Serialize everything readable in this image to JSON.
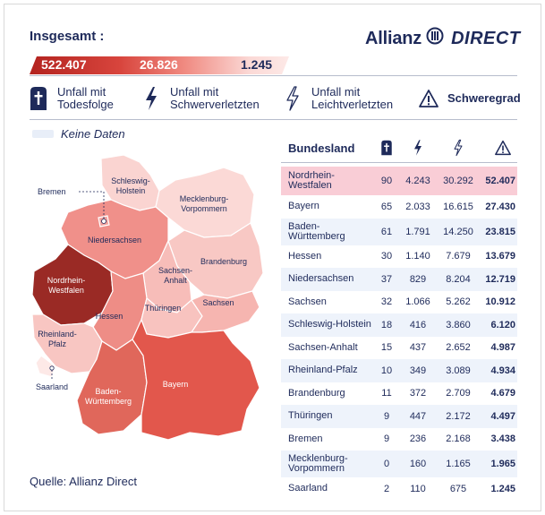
{
  "header": {
    "title": "Insgesamt :",
    "brand": "Allianz",
    "brand_suffix": "DIRECT"
  },
  "totals": {
    "fatal": "522.407",
    "severe": "26.826",
    "light": "1.245"
  },
  "legend": {
    "fatal_line1": "Unfall mit",
    "fatal_line2": "Todesfolge",
    "severe_line1": "Unfall mit",
    "severe_line2": "Schwerverletzten",
    "light_line1": "Unfall mit",
    "light_line2": "Leichtverletzten",
    "severity": "Schweregrad",
    "no_data": "Keine Daten"
  },
  "map": {
    "labels": {
      "bremen": "Bremen",
      "schleswig_holstein_1": "Schleswig-",
      "schleswig_holstein_2": "Holstein",
      "mecklenburg_1": "Mecklenburg-",
      "mecklenburg_2": "Vorpommern",
      "niedersachsen": "Niedersachsen",
      "brandenburg": "Brandenburg",
      "sachsen_anhalt_1": "Sachsen-",
      "sachsen_anhalt_2": "Anhalt",
      "nrw_1": "Nordrhein-",
      "nrw_2": "Westfalen",
      "sachsen": "Sachsen",
      "hessen": "Hessen",
      "thueringen": "Thüringen",
      "rlp_1": "Rheinland-",
      "rlp_2": "Pfalz",
      "saarland": "Saarland",
      "bw_1": "Baden-",
      "bw_2": "Württemberg",
      "bayern": "Bayern"
    },
    "colors": {
      "nrw": "#9a2a25",
      "bayern": "#e2574c",
      "bw": "#e0675b",
      "hessen": "#ee8d86",
      "niedersachsen": "#f0908a",
      "sachsen": "#f6b5b0",
      "schleswig_holstein": "#fad4d1",
      "sachsen_anhalt": "#f7bdb9",
      "rlp": "#f8c6c2",
      "brandenburg": "#f8c8c4",
      "thueringen": "#f8c3bf",
      "bremen": "#f3a49f",
      "mecklenburg": "#fbd9d6",
      "saarland": "#fde9e7"
    }
  },
  "table": {
    "header_name": "Bundesland",
    "rows": [
      {
        "name_1": "Nordrhein-",
        "name_2": "Westfalen",
        "fatal": "90",
        "severe": "4.243",
        "light": "30.292",
        "severity": "52.407"
      },
      {
        "name_1": "Bayern",
        "name_2": "",
        "fatal": "65",
        "severe": "2.033",
        "light": "16.615",
        "severity": "27.430"
      },
      {
        "name_1": "Baden-",
        "name_2": "Württemberg",
        "fatal": "61",
        "severe": "1.791",
        "light": "14.250",
        "severity": "23.815"
      },
      {
        "name_1": "Hessen",
        "name_2": "",
        "fatal": "30",
        "severe": "1.140",
        "light": "7.679",
        "severity": "13.679"
      },
      {
        "name_1": "Niedersachsen",
        "name_2": "",
        "fatal": "37",
        "severe": "829",
        "light": "8.204",
        "severity": "12.719"
      },
      {
        "name_1": "Sachsen",
        "name_2": "",
        "fatal": "32",
        "severe": "1.066",
        "light": "5.262",
        "severity": "10.912"
      },
      {
        "name_1": "Schleswig-Holstein",
        "name_2": "",
        "fatal": "18",
        "severe": "416",
        "light": "3.860",
        "severity": "6.120"
      },
      {
        "name_1": "Sachsen-Anhalt",
        "name_2": "",
        "fatal": "15",
        "severe": "437",
        "light": "2.652",
        "severity": "4.987"
      },
      {
        "name_1": "Rheinland-Pfalz",
        "name_2": "",
        "fatal": "10",
        "severe": "349",
        "light": "3.089",
        "severity": "4.934"
      },
      {
        "name_1": "Brandenburg",
        "name_2": "",
        "fatal": "11",
        "severe": "372",
        "light": "2.709",
        "severity": "4.679"
      },
      {
        "name_1": "Thüringen",
        "name_2": "",
        "fatal": "9",
        "severe": "447",
        "light": "2.172",
        "severity": "4.497"
      },
      {
        "name_1": "Bremen",
        "name_2": "",
        "fatal": "9",
        "severe": "236",
        "light": "2.168",
        "severity": "3.438"
      },
      {
        "name_1": "Mecklenburg-",
        "name_2": "Vorpommern",
        "fatal": "0",
        "severe": "160",
        "light": "1.165",
        "severity": "1.965"
      },
      {
        "name_1": "Saarland",
        "name_2": "",
        "fatal": "2",
        "severe": "110",
        "light": "675",
        "severity": "1.245"
      }
    ]
  },
  "source": "Quelle: Allianz Direct",
  "chart_data": {
    "type": "table",
    "columns": [
      "Bundesland",
      "Unfall mit Todesfolge",
      "Unfall mit Schwerverletzten",
      "Unfall mit Leichtverletzten",
      "Schweregrad"
    ],
    "categories": [
      "Nordrhein-Westfalen",
      "Bayern",
      "Baden-Württemberg",
      "Hessen",
      "Niedersachsen",
      "Sachsen",
      "Schleswig-Holstein",
      "Sachsen-Anhalt",
      "Rheinland-Pfalz",
      "Brandenburg",
      "Thüringen",
      "Bremen",
      "Mecklenburg-Vorpommern",
      "Saarland"
    ],
    "series": [
      {
        "name": "Unfall mit Todesfolge",
        "values": [
          90,
          65,
          61,
          30,
          37,
          32,
          18,
          15,
          10,
          11,
          9,
          9,
          0,
          2
        ]
      },
      {
        "name": "Unfall mit Schwerverletzten",
        "values": [
          4243,
          2033,
          1791,
          1140,
          829,
          1066,
          416,
          437,
          349,
          372,
          447,
          236,
          160,
          110
        ]
      },
      {
        "name": "Unfall mit Leichtverletzten",
        "values": [
          30292,
          16615,
          14250,
          7679,
          8204,
          5262,
          3860,
          2652,
          3089,
          2709,
          2172,
          2168,
          1165,
          675
        ]
      },
      {
        "name": "Schweregrad",
        "values": [
          52407,
          27430,
          23815,
          13679,
          12719,
          10912,
          6120,
          4987,
          4934,
          4679,
          4497,
          3438,
          1965,
          1245
        ]
      }
    ],
    "title": "Insgesamt :",
    "totals": [
      "522.407",
      "26.826",
      "1.245"
    ]
  }
}
